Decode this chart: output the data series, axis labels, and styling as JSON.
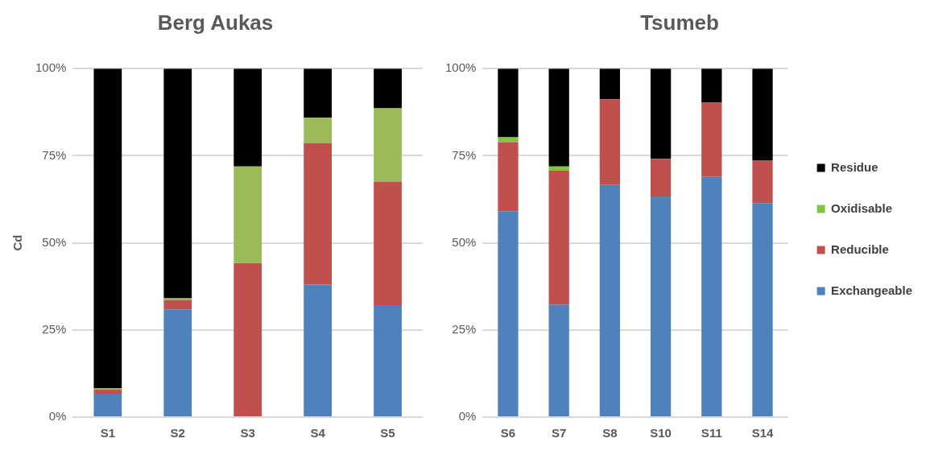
{
  "chart_data": [
    {
      "type": "bar",
      "title": "Berg Aukas",
      "ylabel": "Cd",
      "stacked": true,
      "categories": [
        "S1",
        "S2",
        "S3",
        "S4",
        "S5"
      ],
      "series": [
        {
          "color": "#4f81bd",
          "values": [
            6.7,
            30.9,
            0,
            38.0,
            32.1
          ]
        },
        {
          "color": "#c0504d",
          "values": [
            1.2,
            2.7,
            44.2,
            40.6,
            35.5
          ]
        },
        {
          "color": "#9bbb59",
          "values": [
            0.4,
            0.5,
            27.7,
            7.3,
            21.0
          ]
        },
        {
          "color": "#000000",
          "values": [
            91.7,
            65.9,
            28.1,
            14.1,
            11.4
          ]
        }
      ],
      "ylim": [
        0,
        100
      ],
      "yticks": [
        {
          "value": 0,
          "label": "0%"
        },
        {
          "value": 25,
          "label": "25%"
        },
        {
          "value": 50,
          "label": "50%"
        },
        {
          "value": 75,
          "label": "75%"
        },
        {
          "value": 100,
          "label": "100%"
        }
      ],
      "grid": "y",
      "legend": false
    },
    {
      "type": "bar",
      "title": "Tsumeb",
      "stacked": true,
      "categories": [
        "S6",
        "S7",
        "S8",
        "S10",
        "S11",
        "S14"
      ],
      "series": [
        {
          "name": "Exchangeable",
          "color": "#4f81bd",
          "values": [
            59.1,
            32.3,
            66.6,
            63.3,
            68.9,
            61.4
          ]
        },
        {
          "name": "Reducible",
          "color": "#c0504d",
          "values": [
            19.8,
            38.4,
            24.6,
            10.8,
            21.3,
            12.3
          ]
        },
        {
          "name": "Oxidisable",
          "color": "#7ec840",
          "values": [
            1.4,
            1.2,
            0,
            0,
            0,
            0
          ]
        },
        {
          "name": "Residue",
          "color": "#000000",
          "values": [
            19.7,
            28.1,
            8.8,
            25.9,
            9.8,
            26.3
          ]
        }
      ],
      "ylim": [
        0,
        100
      ],
      "yticks": [
        {
          "value": 0,
          "label": "0%"
        },
        {
          "value": 25,
          "label": "25%"
        },
        {
          "value": 50,
          "label": "50%"
        },
        {
          "value": 75,
          "label": "75%"
        },
        {
          "value": 100,
          "label": "100%"
        }
      ],
      "grid": "y",
      "legend": "right"
    }
  ]
}
